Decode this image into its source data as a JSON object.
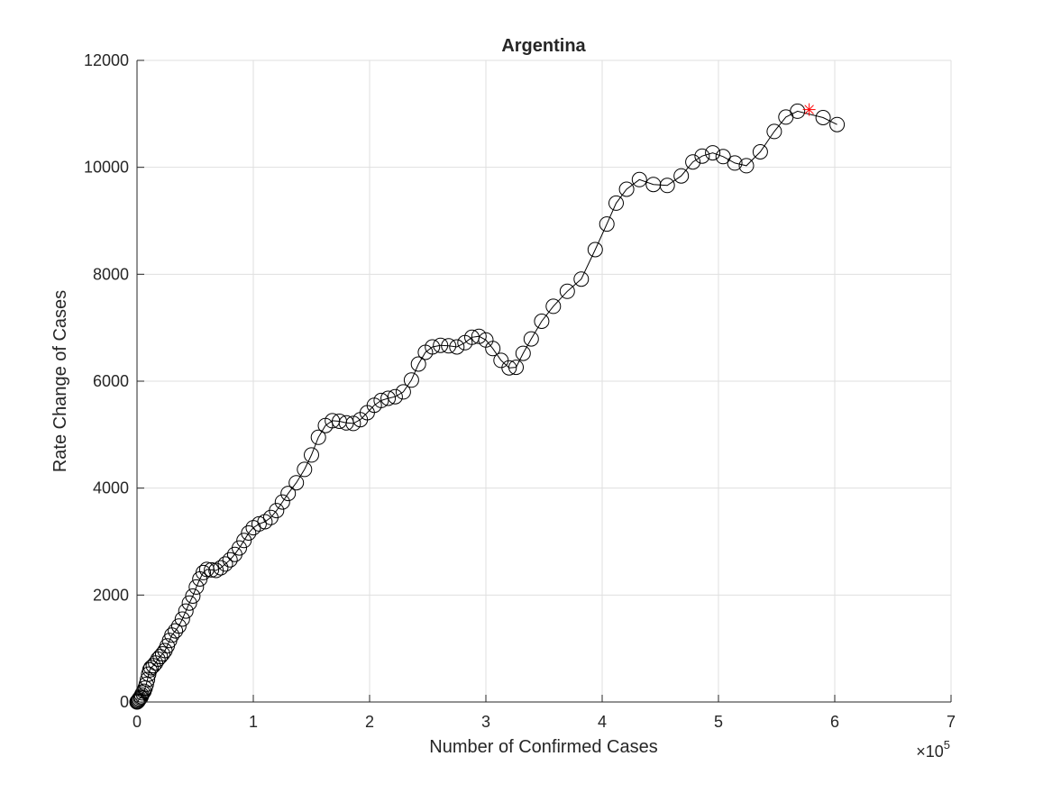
{
  "chart_data": {
    "type": "scatter",
    "title": "Argentina",
    "xlabel": "Number of Confirmed Cases",
    "ylabel": "Rate Change of Cases",
    "x_exponent_label": {
      "base": "×10",
      "exp": "5"
    },
    "xlim": [
      0,
      7
    ],
    "ylim": [
      0,
      12000
    ],
    "xticks": [
      0,
      1,
      2,
      3,
      4,
      5,
      6,
      7
    ],
    "xtick_labels": [
      "0",
      "1",
      "2",
      "3",
      "4",
      "5",
      "6",
      "7"
    ],
    "yticks": [
      0,
      2000,
      4000,
      6000,
      8000,
      10000,
      12000
    ],
    "ytick_labels": [
      "0",
      "2000",
      "4000",
      "6000",
      "8000",
      "10000",
      "12000"
    ],
    "grid": true,
    "colors": {
      "series": "#000000",
      "highlight": "#ff0000",
      "grid": "#dfdfdf",
      "axis": "#262626"
    },
    "series": [
      {
        "marker": "circle",
        "line": true,
        "points": [
          [
            0.0,
            0
          ],
          [
            0.005,
            10
          ],
          [
            0.01,
            20
          ],
          [
            0.015,
            40
          ],
          [
            0.02,
            60
          ],
          [
            0.03,
            80
          ],
          [
            0.035,
            100
          ],
          [
            0.04,
            130
          ],
          [
            0.05,
            170
          ],
          [
            0.06,
            200
          ],
          [
            0.07,
            260
          ],
          [
            0.08,
            330
          ],
          [
            0.09,
            420
          ],
          [
            0.1,
            520
          ],
          [
            0.11,
            600
          ],
          [
            0.12,
            640
          ],
          [
            0.14,
            680
          ],
          [
            0.16,
            730
          ],
          [
            0.18,
            800
          ],
          [
            0.2,
            850
          ],
          [
            0.22,
            900
          ],
          [
            0.24,
            960
          ],
          [
            0.26,
            1050
          ],
          [
            0.28,
            1150
          ],
          [
            0.3,
            1250
          ],
          [
            0.33,
            1330
          ],
          [
            0.36,
            1420
          ],
          [
            0.39,
            1550
          ],
          [
            0.42,
            1700
          ],
          [
            0.45,
            1850
          ],
          [
            0.48,
            1980
          ],
          [
            0.51,
            2150
          ],
          [
            0.54,
            2300
          ],
          [
            0.57,
            2420
          ],
          [
            0.6,
            2480
          ],
          [
            0.64,
            2470
          ],
          [
            0.68,
            2460
          ],
          [
            0.72,
            2510
          ],
          [
            0.76,
            2580
          ],
          [
            0.8,
            2660
          ],
          [
            0.84,
            2760
          ],
          [
            0.88,
            2880
          ],
          [
            0.92,
            3020
          ],
          [
            0.96,
            3160
          ],
          [
            1.0,
            3260
          ],
          [
            1.05,
            3330
          ],
          [
            1.1,
            3370
          ],
          [
            1.15,
            3450
          ],
          [
            1.2,
            3580
          ],
          [
            1.25,
            3740
          ],
          [
            1.3,
            3900
          ],
          [
            1.37,
            4100
          ],
          [
            1.44,
            4350
          ],
          [
            1.5,
            4620
          ],
          [
            1.56,
            4950
          ],
          [
            1.62,
            5170
          ],
          [
            1.68,
            5260
          ],
          [
            1.74,
            5250
          ],
          [
            1.8,
            5220
          ],
          [
            1.86,
            5210
          ],
          [
            1.92,
            5280
          ],
          [
            1.98,
            5410
          ],
          [
            2.04,
            5550
          ],
          [
            2.1,
            5640
          ],
          [
            2.16,
            5680
          ],
          [
            2.22,
            5710
          ],
          [
            2.29,
            5800
          ],
          [
            2.36,
            6020
          ],
          [
            2.42,
            6320
          ],
          [
            2.48,
            6540
          ],
          [
            2.54,
            6640
          ],
          [
            2.61,
            6670
          ],
          [
            2.68,
            6660
          ],
          [
            2.75,
            6640
          ],
          [
            2.82,
            6720
          ],
          [
            2.88,
            6820
          ],
          [
            2.94,
            6840
          ],
          [
            3.0,
            6770
          ],
          [
            3.06,
            6610
          ],
          [
            3.13,
            6390
          ],
          [
            3.2,
            6250
          ],
          [
            3.26,
            6260
          ],
          [
            3.32,
            6520
          ],
          [
            3.39,
            6790
          ],
          [
            3.48,
            7120
          ],
          [
            3.58,
            7400
          ],
          [
            3.7,
            7680
          ],
          [
            3.82,
            7910
          ],
          [
            3.94,
            8460
          ],
          [
            4.04,
            8940
          ],
          [
            4.12,
            9330
          ],
          [
            4.21,
            9590
          ],
          [
            4.32,
            9770
          ],
          [
            4.44,
            9680
          ],
          [
            4.56,
            9660
          ],
          [
            4.68,
            9840
          ],
          [
            4.78,
            10100
          ],
          [
            4.86,
            10210
          ],
          [
            4.95,
            10270
          ],
          [
            5.04,
            10200
          ],
          [
            5.14,
            10080
          ],
          [
            5.24,
            10030
          ],
          [
            5.36,
            10290
          ],
          [
            5.48,
            10670
          ],
          [
            5.58,
            10940
          ],
          [
            5.68,
            11050
          ],
          [
            5.9,
            10930
          ],
          [
            6.02,
            10800
          ]
        ]
      }
    ],
    "highlight_point": {
      "x": 5.78,
      "y": 11080,
      "marker": "star"
    }
  }
}
